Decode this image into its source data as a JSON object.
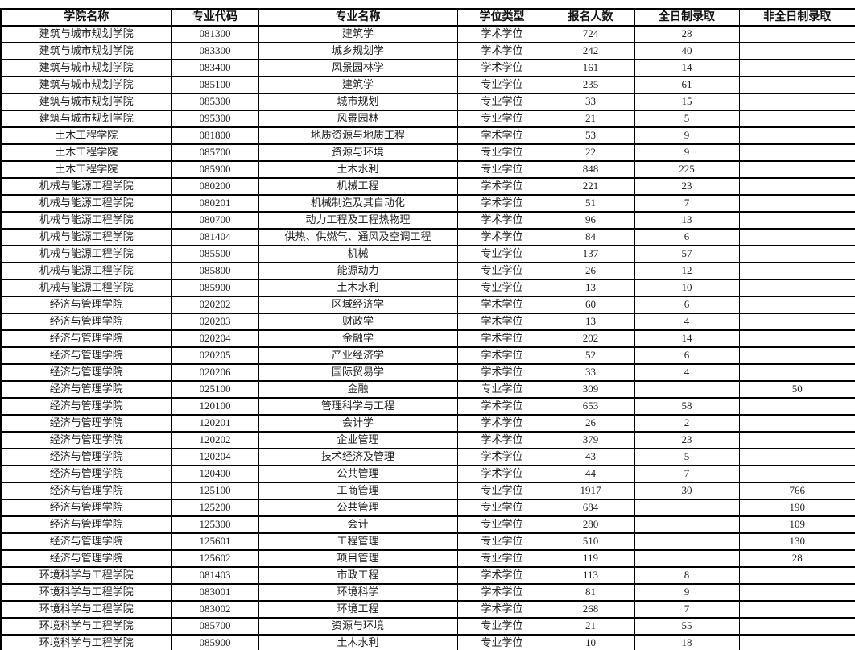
{
  "table": {
    "headers": [
      "学院名称",
      "专业代码",
      "专业名称",
      "学位类型",
      "报名人数",
      "全日制录取",
      "非全日制录取"
    ],
    "rows": [
      [
        "建筑与城市规划学院",
        "081300",
        "建筑学",
        "学术学位",
        "724",
        "28",
        ""
      ],
      [
        "建筑与城市规划学院",
        "083300",
        "城乡规划学",
        "学术学位",
        "242",
        "40",
        ""
      ],
      [
        "建筑与城市规划学院",
        "083400",
        "风景园林学",
        "学术学位",
        "161",
        "14",
        ""
      ],
      [
        "建筑与城市规划学院",
        "085100",
        "建筑学",
        "专业学位",
        "235",
        "61",
        ""
      ],
      [
        "建筑与城市规划学院",
        "085300",
        "城市规划",
        "专业学位",
        "33",
        "15",
        ""
      ],
      [
        "建筑与城市规划学院",
        "095300",
        "风景园林",
        "专业学位",
        "21",
        "5",
        ""
      ],
      [
        "土木工程学院",
        "081800",
        "地质资源与地质工程",
        "学术学位",
        "53",
        "9",
        ""
      ],
      [
        "土木工程学院",
        "085700",
        "资源与环境",
        "专业学位",
        "22",
        "9",
        ""
      ],
      [
        "土木工程学院",
        "085900",
        "土木水利",
        "专业学位",
        "848",
        "225",
        ""
      ],
      [
        "机械与能源工程学院",
        "080200",
        "机械工程",
        "学术学位",
        "221",
        "23",
        ""
      ],
      [
        "机械与能源工程学院",
        "080201",
        "机械制造及其自动化",
        "学术学位",
        "51",
        "7",
        ""
      ],
      [
        "机械与能源工程学院",
        "080700",
        "动力工程及工程热物理",
        "学术学位",
        "96",
        "13",
        ""
      ],
      [
        "机械与能源工程学院",
        "081404",
        "供热、供燃气、通风及空调工程",
        "学术学位",
        "84",
        "6",
        ""
      ],
      [
        "机械与能源工程学院",
        "085500",
        "机械",
        "专业学位",
        "137",
        "57",
        ""
      ],
      [
        "机械与能源工程学院",
        "085800",
        "能源动力",
        "专业学位",
        "26",
        "12",
        ""
      ],
      [
        "机械与能源工程学院",
        "085900",
        "土木水利",
        "专业学位",
        "13",
        "10",
        ""
      ],
      [
        "经济与管理学院",
        "020202",
        "区域经济学",
        "学术学位",
        "60",
        "6",
        ""
      ],
      [
        "经济与管理学院",
        "020203",
        "财政学",
        "学术学位",
        "13",
        "4",
        ""
      ],
      [
        "经济与管理学院",
        "020204",
        "金融学",
        "学术学位",
        "202",
        "14",
        ""
      ],
      [
        "经济与管理学院",
        "020205",
        "产业经济学",
        "学术学位",
        "52",
        "6",
        ""
      ],
      [
        "经济与管理学院",
        "020206",
        "国际贸易学",
        "学术学位",
        "33",
        "4",
        ""
      ],
      [
        "经济与管理学院",
        "025100",
        "金融",
        "专业学位",
        "309",
        "",
        "50"
      ],
      [
        "经济与管理学院",
        "120100",
        "管理科学与工程",
        "学术学位",
        "653",
        "58",
        ""
      ],
      [
        "经济与管理学院",
        "120201",
        "会计学",
        "学术学位",
        "26",
        "2",
        ""
      ],
      [
        "经济与管理学院",
        "120202",
        "企业管理",
        "学术学位",
        "379",
        "23",
        ""
      ],
      [
        "经济与管理学院",
        "120204",
        "技术经济及管理",
        "学术学位",
        "43",
        "5",
        ""
      ],
      [
        "经济与管理学院",
        "120400",
        "公共管理",
        "学术学位",
        "44",
        "7",
        ""
      ],
      [
        "经济与管理学院",
        "125100",
        "工商管理",
        "专业学位",
        "1917",
        "30",
        "766"
      ],
      [
        "经济与管理学院",
        "125200",
        "公共管理",
        "专业学位",
        "684",
        "",
        "190"
      ],
      [
        "经济与管理学院",
        "125300",
        "会计",
        "专业学位",
        "280",
        "",
        "109"
      ],
      [
        "经济与管理学院",
        "125601",
        "工程管理",
        "专业学位",
        "510",
        "",
        "130"
      ],
      [
        "经济与管理学院",
        "125602",
        "项目管理",
        "专业学位",
        "119",
        "",
        "28"
      ],
      [
        "环境科学与工程学院",
        "081403",
        "市政工程",
        "学术学位",
        "113",
        "8",
        ""
      ],
      [
        "环境科学与工程学院",
        "083001",
        "环境科学",
        "学术学位",
        "81",
        "9",
        ""
      ],
      [
        "环境科学与工程学院",
        "083002",
        "环境工程",
        "学术学位",
        "268",
        "7",
        ""
      ],
      [
        "环境科学与工程学院",
        "085700",
        "资源与环境",
        "专业学位",
        "21",
        "55",
        ""
      ],
      [
        "环境科学与工程学院",
        "085900",
        "土木水利",
        "专业学位",
        "10",
        "18",
        ""
      ]
    ]
  }
}
